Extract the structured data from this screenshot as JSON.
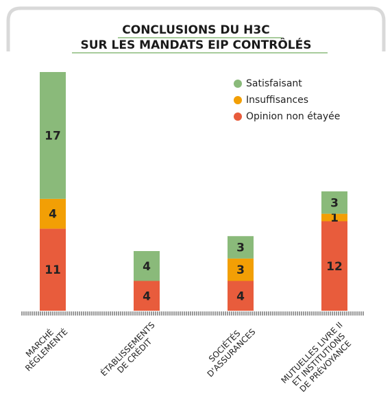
{
  "chart_data": {
    "type": "stacked_bar",
    "title": [
      "CONCLUSIONS DU H3C",
      "SUR LES MANDATS EIP CONTRÔLÉS"
    ],
    "categories": [
      [
        "MARCHÉ",
        "RÉGLEMENTÉ"
      ],
      [
        "ÉTABLISSEMENTS",
        "DE CRÉDIT"
      ],
      [
        "SOCIÉTÉS",
        "D'ASSURANCES"
      ],
      [
        "MUTUELLES LIVRE II",
        "ET INSTITUTIONS",
        "DE PRÉVOYANCE"
      ]
    ],
    "series": [
      {
        "name": "Satisfaisant",
        "color": "#8aba7a",
        "values": [
          17,
          4,
          3,
          3
        ]
      },
      {
        "name": "Insuffisances",
        "color": "#f29f05",
        "values": [
          4,
          0,
          3,
          1
        ]
      },
      {
        "name": "Opinion non étayée",
        "color": "#e85c3c",
        "values": [
          11,
          4,
          4,
          12
        ]
      }
    ],
    "legend": "top-right"
  }
}
